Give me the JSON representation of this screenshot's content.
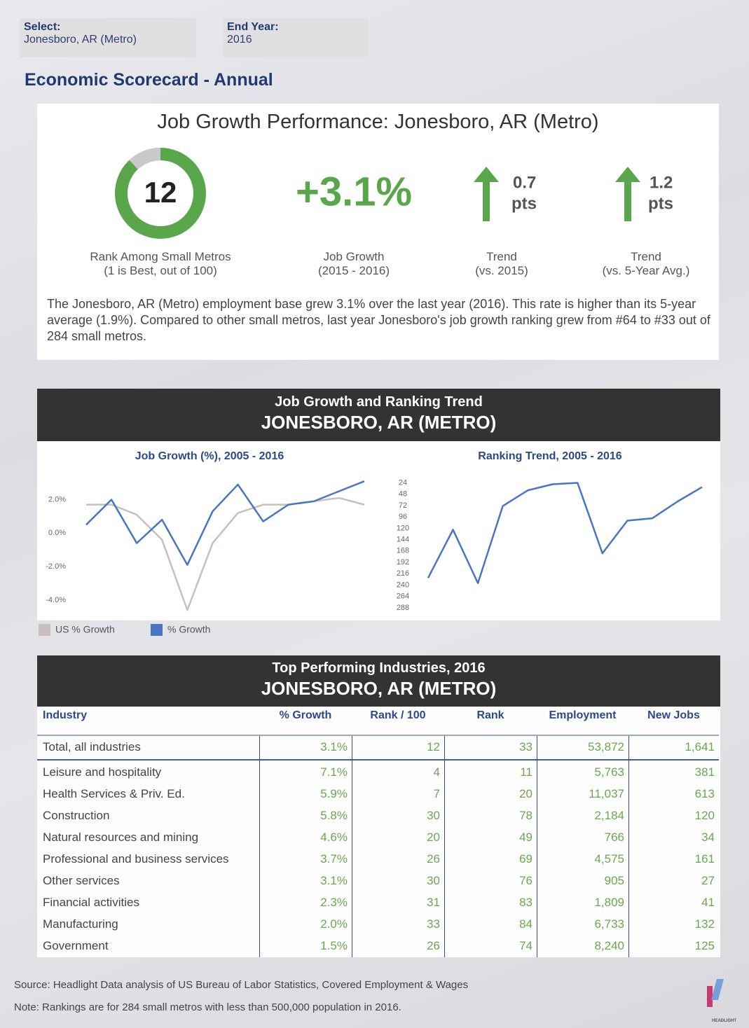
{
  "header": {
    "select_label": "Select:",
    "select_value": "Jonesboro, AR (Metro)",
    "end_year_label": "End Year:",
    "end_year_value": "2016",
    "page_title": "Economic Scorecard - Annual"
  },
  "scorecard": {
    "title": "Job Growth Performance: Jonesboro, AR (Metro)",
    "rank": {
      "value": 12,
      "gauge_lim": [
        0,
        100
      ],
      "caption": [
        "Rank Among Small Metros",
        "(1 is Best, out of 100)"
      ]
    },
    "job_growth": {
      "value": 3.1,
      "label": "+3.1%",
      "caption": [
        "Job Growth",
        "(2015 - 2016)"
      ]
    },
    "trends": [
      {
        "value": 0.7,
        "unit": "pts",
        "caption": [
          "Trend",
          "(vs. 2015)"
        ]
      },
      {
        "value": 1.2,
        "unit": "pts",
        "caption": [
          "Trend",
          "(vs. 5-Year Avg.)"
        ]
      }
    ],
    "summary": "The Jonesboro, AR (Metro) employment base grew 3.1% over the last year (2016). This rate is higher than its 5-year average (1.9%). Compared to other small metros, last year Jonesboro's job growth ranking grew from #64 to #33 out of 284 small metros."
  },
  "trend_section": {
    "title": "Job Growth and Ranking Trend",
    "subtitle": "JONESBORO, AR (METRO)"
  },
  "chart_data": [
    {
      "type": "line",
      "title": "Job Growth (%), 2005 - 2016",
      "ylim": [
        -4.8,
        3.4
      ],
      "yticks": [
        {
          "value": 2,
          "label": "2.0%"
        },
        {
          "value": 0,
          "label": "0.0%"
        },
        {
          "value": -2,
          "label": "-2.0%"
        },
        {
          "value": -4,
          "label": "-4.0%"
        }
      ],
      "grid": false,
      "series": [
        {
          "name": "US % Growth",
          "color": "#c8c0bc",
          "values": [
            1.7,
            1.7,
            1.1,
            -0.4,
            -4.6,
            -0.6,
            1.2,
            1.7,
            1.7,
            1.9,
            2.1,
            1.7
          ]
        },
        {
          "name": "% Growth",
          "color": "#4a74c4",
          "values": [
            0.5,
            2.0,
            -0.6,
            0.8,
            -1.9,
            1.3,
            2.9,
            0.7,
            1.7,
            1.9,
            2.5,
            3.1
          ]
        }
      ]
    },
    {
      "type": "line",
      "title": "Ranking Trend, 2005 - 2016",
      "ylim": [
        300,
        10
      ],
      "yticks": [
        24,
        48,
        72,
        96,
        120,
        144,
        168,
        192,
        216,
        240,
        264,
        288
      ],
      "grid": false,
      "series": [
        {
          "name": "Rank",
          "color": "#4a74c4",
          "values": [
            225,
            123,
            236,
            73,
            40,
            27,
            24,
            173,
            104,
            99,
            64,
            33
          ]
        }
      ]
    }
  ],
  "industries": {
    "title": "Top Performing Industries, 2016",
    "subtitle": "JONESBORO, AR (METRO)",
    "columns": [
      "Industry",
      "% Growth",
      "Rank / 100",
      "Rank",
      "Employment",
      "New Jobs"
    ],
    "total": [
      "Total, all industries",
      "3.1%",
      "12",
      "33",
      "53,872",
      "1,641"
    ],
    "rows": [
      [
        "Leisure and hospitality",
        "7.1%",
        "4",
        "11",
        "5,763",
        "381"
      ],
      [
        "Health Services & Priv. Ed.",
        "5.9%",
        "7",
        "20",
        "11,037",
        "613"
      ],
      [
        "Construction",
        "5.8%",
        "30",
        "78",
        "2,184",
        "120"
      ],
      [
        "Natural resources and mining",
        "4.6%",
        "20",
        "49",
        "766",
        "34"
      ],
      [
        "Professional and business services",
        "3.7%",
        "26",
        "69",
        "4,575",
        "161"
      ],
      [
        "Other services",
        "3.1%",
        "30",
        "76",
        "905",
        "27"
      ],
      [
        "Financial activities",
        "2.3%",
        "31",
        "83",
        "1,809",
        "41"
      ],
      [
        "Manufacturing",
        "2.0%",
        "33",
        "84",
        "6,733",
        "132"
      ],
      [
        "Government",
        "1.5%",
        "26",
        "74",
        "8,240",
        "125"
      ]
    ]
  },
  "footer": {
    "source": "Source: Headlight Data analysis of US Bureau of Labor Statistics, Covered Employment & Wages",
    "note": "Note: Rankings are for 284 small metros with less than 500,000 population in 2016.",
    "logo": "HEADLIGHT"
  }
}
